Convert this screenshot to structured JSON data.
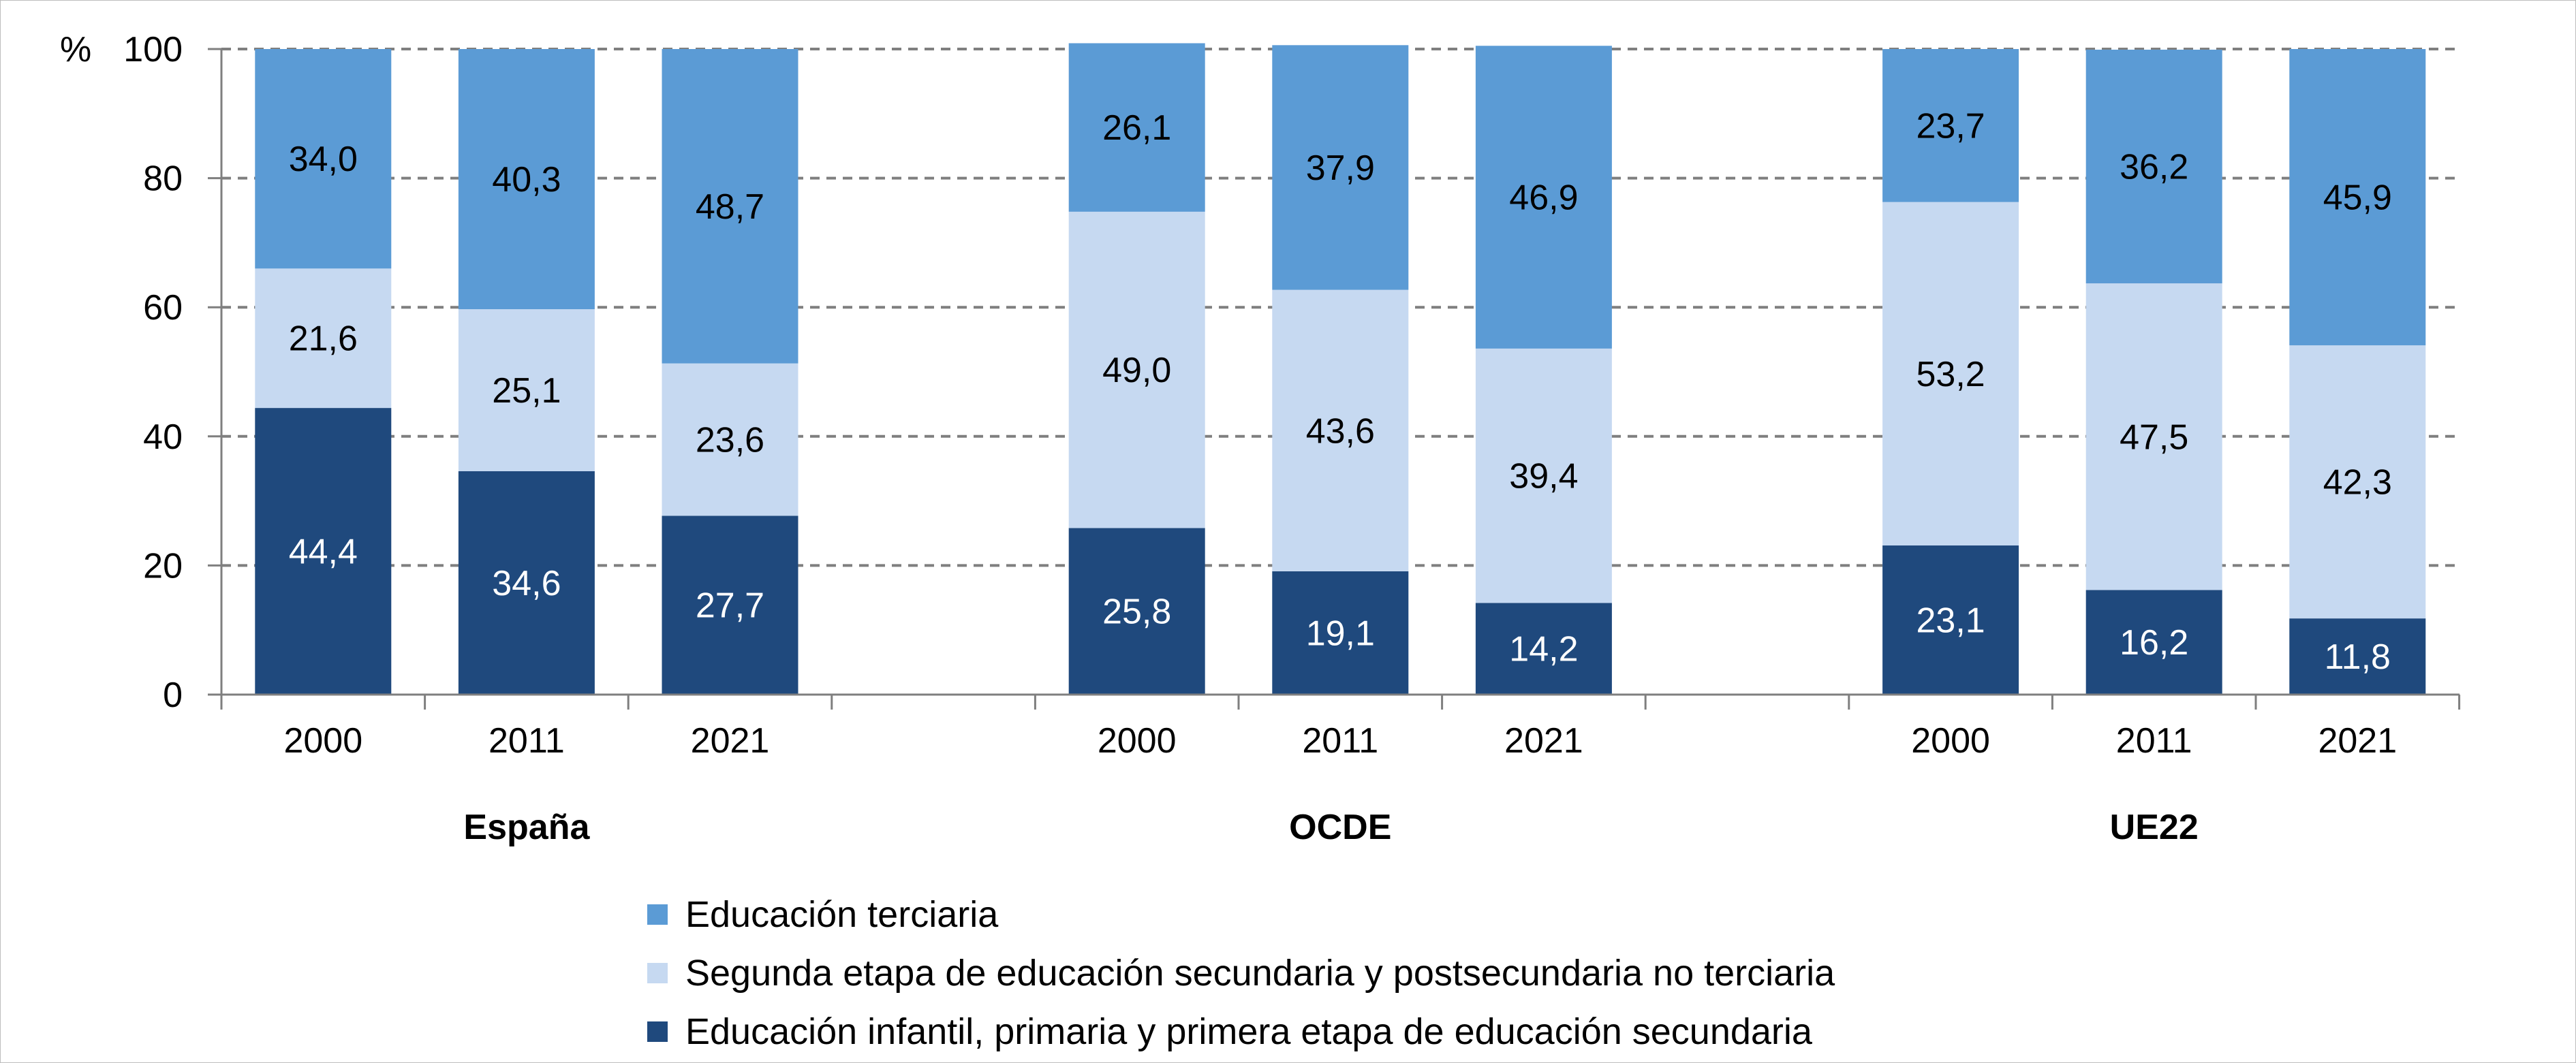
{
  "chart_data": {
    "type": "bar",
    "stacked": true,
    "ylabel": "%",
    "ylim": [
      0,
      100
    ],
    "yticks": [
      0,
      20,
      40,
      60,
      80,
      100
    ],
    "grid": "horizontal dashed",
    "legend_position": "bottom",
    "groups": [
      {
        "name": "España",
        "years": [
          "2000",
          "2011",
          "2021"
        ]
      },
      {
        "name": "OCDE",
        "years": [
          "2000",
          "2011",
          "2021"
        ]
      },
      {
        "name": "UE22",
        "years": [
          "2000",
          "2011",
          "2021"
        ]
      }
    ],
    "series": [
      {
        "name": "Educación infantil, primaria y primera etapa de educación secundaria",
        "color": "#1F497D",
        "label_color": "#ffffff",
        "labels": [
          "44,4",
          "34,6",
          "27,7",
          "25,8",
          "19,1",
          "14,2",
          "23,1",
          "16,2",
          "11,8"
        ],
        "values": [
          44.4,
          34.6,
          27.7,
          25.8,
          19.1,
          14.2,
          23.1,
          16.2,
          11.8
        ]
      },
      {
        "name": "Segunda etapa de educación secundaria y postsecundaria no terciaria",
        "color": "#C6D9F1",
        "label_color": "#000000",
        "labels": [
          "21,6",
          "25,1",
          "23,6",
          "49,0",
          "43,6",
          "39,4",
          "53,2",
          "47,5",
          "42,3"
        ],
        "values": [
          21.6,
          25.1,
          23.6,
          49.0,
          43.6,
          39.4,
          53.2,
          47.5,
          42.3
        ]
      },
      {
        "name": "Educación terciaria",
        "color": "#5B9BD5",
        "label_color": "#000000",
        "labels": [
          "34,0",
          "40,3",
          "48,7",
          "26,1",
          "37,9",
          "46,9",
          "23,7",
          "36,2",
          "45,9"
        ],
        "values": [
          34.0,
          40.3,
          48.7,
          26.1,
          37.9,
          46.9,
          23.7,
          36.2,
          45.9
        ]
      }
    ],
    "legend_order": [
      2,
      1,
      0
    ]
  }
}
